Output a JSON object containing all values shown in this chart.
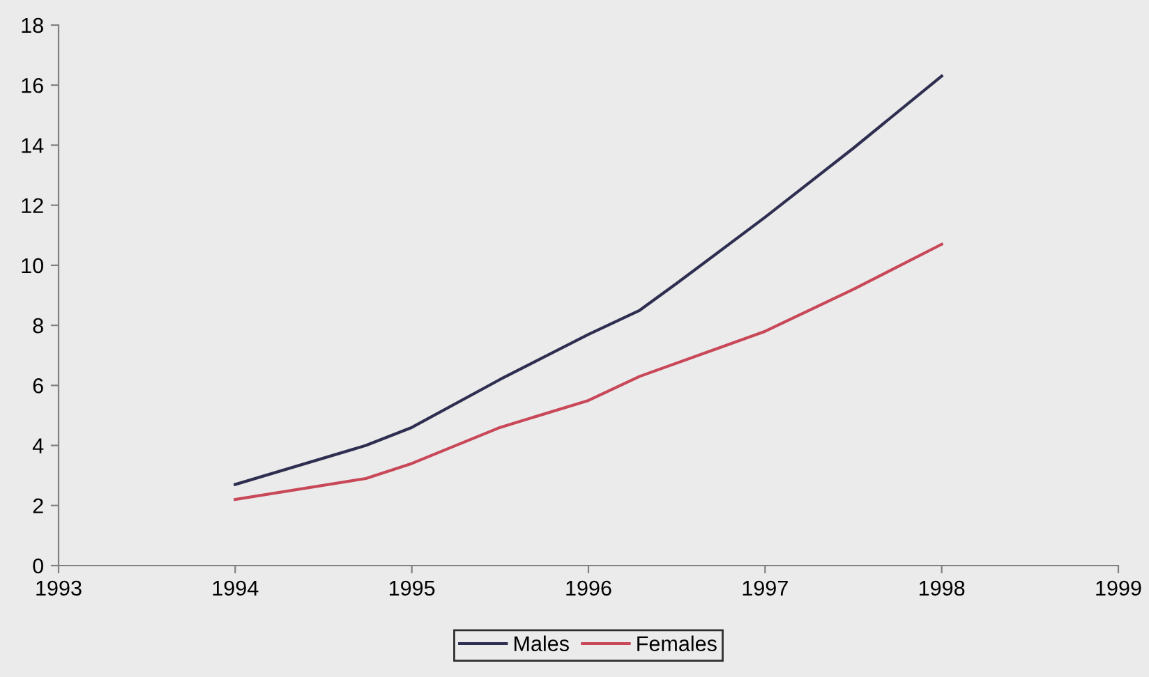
{
  "chart_data": {
    "type": "line",
    "xlim": [
      1993,
      1999
    ],
    "xticks": [
      1993,
      1994,
      1995,
      1996,
      1997,
      1998,
      1999
    ],
    "ylim": [
      0,
      18
    ],
    "yticks": [
      0,
      2,
      4,
      6,
      8,
      10,
      12,
      14,
      16,
      18
    ],
    "series": [
      {
        "name": "Males",
        "color": "#2e2e50",
        "x": [
          1994,
          1994.74,
          1995,
          1995.5,
          1996,
          1996.29,
          1996.5,
          1997,
          1997.5,
          1998
        ],
        "values": [
          2.7,
          4.0,
          4.6,
          6.2,
          7.7,
          8.5,
          9.4,
          11.6,
          13.9,
          16.3
        ]
      },
      {
        "name": "Females",
        "color": "#c84858",
        "x": [
          1994,
          1994.74,
          1995,
          1995.5,
          1996,
          1996.29,
          1997,
          1997.5,
          1998
        ],
        "values": [
          2.2,
          2.9,
          3.4,
          4.6,
          5.5,
          6.3,
          7.8,
          9.2,
          10.7
        ]
      }
    ],
    "legend": "bottom",
    "grid": false,
    "marker": "none",
    "line_style": "solid"
  }
}
